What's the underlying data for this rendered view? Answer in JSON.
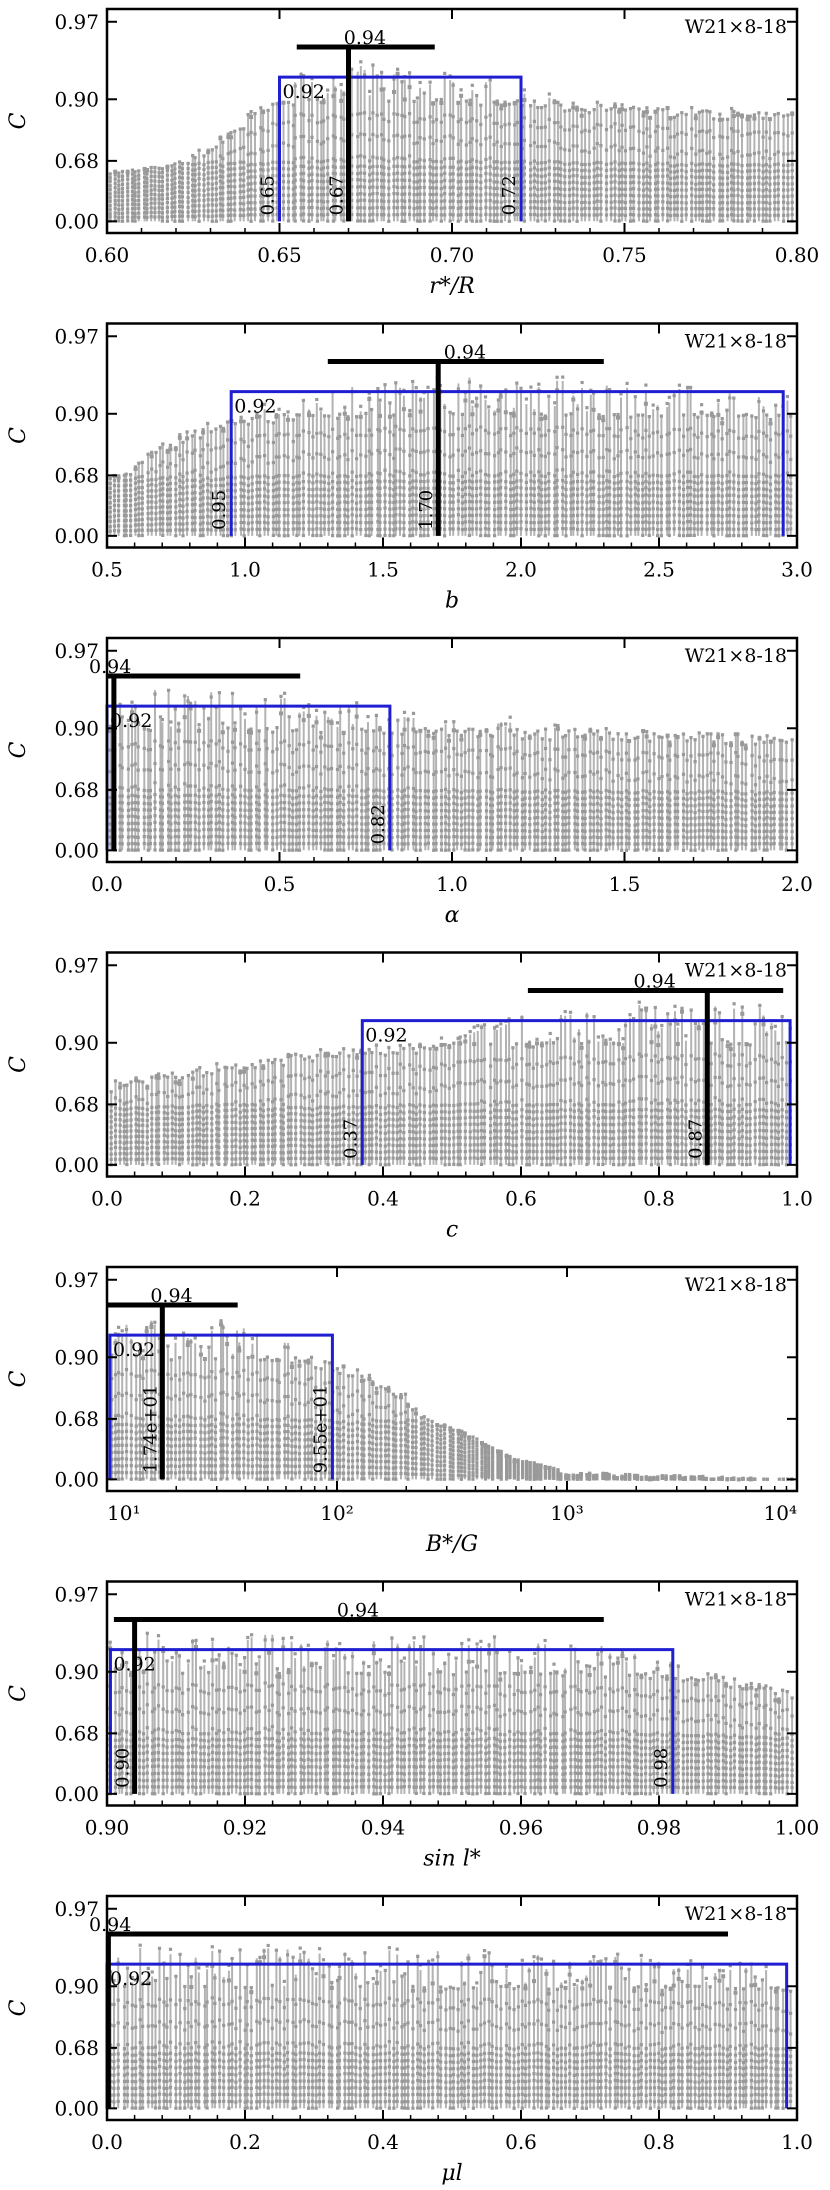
{
  "colors": {
    "points": "#999999",
    "box": "#1f1fd1",
    "marker": "#000000",
    "axis": "#000000"
  },
  "chart_data": [
    {
      "type": "scatter",
      "panel_label": "W21×8-18",
      "xlabel": "r*/R",
      "ylabel": "C",
      "xscale": "linear",
      "xlim": [
        0.6,
        0.8
      ],
      "xticks": [
        0.6,
        0.65,
        0.7,
        0.75,
        0.8
      ],
      "xtick_labels": [
        "0.60",
        "0.65",
        "0.70",
        "0.75",
        "0.80"
      ],
      "ytick_labels": [
        "0.00",
        "0.68",
        "0.90",
        "0.97"
      ],
      "best_x": 0.67,
      "best_x_label": "0.67",
      "best_c": 0.94,
      "best_c_label": "0.94",
      "best_bar_x": [
        0.655,
        0.695
      ],
      "box_c": 0.92,
      "box_c_label": "0.92",
      "box_x": [
        0.65,
        0.72
      ],
      "box_x_labels": [
        "0.65",
        "0.72"
      ],
      "envelope": [
        {
          "x": 0.6,
          "c": 0.56
        },
        {
          "x": 0.615,
          "c": 0.62
        },
        {
          "x": 0.625,
          "c": 0.7
        },
        {
          "x": 0.635,
          "c": 0.8
        },
        {
          "x": 0.645,
          "c": 0.88
        },
        {
          "x": 0.655,
          "c": 0.925
        },
        {
          "x": 0.67,
          "c": 0.935
        },
        {
          "x": 0.69,
          "c": 0.93
        },
        {
          "x": 0.71,
          "c": 0.92
        },
        {
          "x": 0.725,
          "c": 0.905
        },
        {
          "x": 0.74,
          "c": 0.89
        },
        {
          "x": 0.76,
          "c": 0.875
        },
        {
          "x": 0.78,
          "c": 0.865
        },
        {
          "x": 0.8,
          "c": 0.855
        }
      ]
    },
    {
      "type": "scatter",
      "panel_label": "W21×8-18",
      "xlabel": "b",
      "ylabel": "C",
      "xscale": "linear",
      "xlim": [
        0.5,
        3.0
      ],
      "xticks": [
        0.5,
        1.0,
        1.5,
        2.0,
        2.5,
        3.0
      ],
      "xtick_labels": [
        "0.5",
        "1.0",
        "1.5",
        "2.0",
        "2.5",
        "3.0"
      ],
      "ytick_labels": [
        "0.00",
        "0.68",
        "0.90",
        "0.97"
      ],
      "best_x": 1.7,
      "best_x_label": "1.70",
      "best_c": 0.94,
      "best_c_label": "0.94",
      "best_bar_x": [
        1.3,
        2.3
      ],
      "box_c": 0.92,
      "box_c_label": "0.92",
      "box_x": [
        0.95,
        2.95
      ],
      "box_x_labels": [
        "0.95",
        ""
      ],
      "envelope": [
        {
          "x": 0.5,
          "c": 0.66
        },
        {
          "x": 0.7,
          "c": 0.8
        },
        {
          "x": 0.9,
          "c": 0.88
        },
        {
          "x": 1.1,
          "c": 0.91
        },
        {
          "x": 1.4,
          "c": 0.925
        },
        {
          "x": 1.7,
          "c": 0.935
        },
        {
          "x": 2.0,
          "c": 0.935
        },
        {
          "x": 2.3,
          "c": 0.93
        },
        {
          "x": 2.6,
          "c": 0.925
        },
        {
          "x": 3.0,
          "c": 0.915
        }
      ]
    },
    {
      "type": "scatter",
      "panel_label": "W21×8-18",
      "xlabel": "α",
      "ylabel": "C",
      "xscale": "linear",
      "xlim": [
        0.0,
        2.0
      ],
      "xticks": [
        0.0,
        0.5,
        1.0,
        1.5,
        2.0
      ],
      "xtick_labels": [
        "0.0",
        "0.5",
        "1.0",
        "1.5",
        "2.0"
      ],
      "ytick_labels": [
        "0.00",
        "0.68",
        "0.90",
        "0.97"
      ],
      "best_x": 0.02,
      "best_x_label": "",
      "best_c": 0.94,
      "best_c_label": "0.94",
      "best_bar_x": [
        0.0,
        0.56
      ],
      "box_c": 0.92,
      "box_c_label": "0.92",
      "box_x": [
        0.0,
        0.82
      ],
      "box_x_labels": [
        "",
        "0.82"
      ],
      "envelope": [
        {
          "x": 0.0,
          "c": 0.935
        },
        {
          "x": 0.3,
          "c": 0.935
        },
        {
          "x": 0.6,
          "c": 0.925
        },
        {
          "x": 0.9,
          "c": 0.915
        },
        {
          "x": 1.2,
          "c": 0.905
        },
        {
          "x": 1.5,
          "c": 0.895
        },
        {
          "x": 1.8,
          "c": 0.885
        },
        {
          "x": 2.0,
          "c": 0.87
        }
      ]
    },
    {
      "type": "scatter",
      "panel_label": "W21×8-18",
      "xlabel": "c",
      "ylabel": "C",
      "xscale": "linear",
      "xlim": [
        0.0,
        1.0
      ],
      "xticks": [
        0.0,
        0.2,
        0.4,
        0.6,
        0.8,
        1.0
      ],
      "xtick_labels": [
        "0.0",
        "0.2",
        "0.4",
        "0.6",
        "0.8",
        "1.0"
      ],
      "ytick_labels": [
        "0.00",
        "0.68",
        "0.90",
        "0.97"
      ],
      "best_x": 0.87,
      "best_x_label": "0.87",
      "best_c": 0.94,
      "best_c_label": "0.94",
      "best_bar_x": [
        0.61,
        0.98
      ],
      "box_c": 0.92,
      "box_c_label": "0.92",
      "box_x": [
        0.37,
        0.99
      ],
      "box_x_labels": [
        "0.37",
        ""
      ],
      "envelope": [
        {
          "x": 0.0,
          "c": 0.76
        },
        {
          "x": 0.15,
          "c": 0.82
        },
        {
          "x": 0.3,
          "c": 0.87
        },
        {
          "x": 0.45,
          "c": 0.905
        },
        {
          "x": 0.6,
          "c": 0.925
        },
        {
          "x": 0.75,
          "c": 0.935
        },
        {
          "x": 0.9,
          "c": 0.935
        },
        {
          "x": 1.0,
          "c": 0.93
        }
      ]
    },
    {
      "type": "scatter",
      "panel_label": "W21×8-18",
      "xlabel": "B*/G",
      "ylabel": "C",
      "xscale": "log",
      "xlim": [
        10,
        10000
      ],
      "xticks": [
        10,
        100,
        1000,
        10000
      ],
      "xtick_labels": [
        "10¹",
        "10²",
        "10³",
        "10⁴"
      ],
      "ytick_labels": [
        "0.00",
        "0.68",
        "0.90",
        "0.97"
      ],
      "best_x": 17.4,
      "best_x_label": "1.74e+01",
      "best_c": 0.94,
      "best_c_label": "0.94",
      "best_bar_x": [
        10,
        37
      ],
      "box_c": 0.92,
      "box_c_label": "0.92",
      "box_x": [
        10.3,
        95.5
      ],
      "box_x_labels": [
        "",
        "9.55e+01"
      ],
      "envelope": [
        {
          "x": 10,
          "c": 0.935
        },
        {
          "x": 20,
          "c": 0.935
        },
        {
          "x": 40,
          "c": 0.93
        },
        {
          "x": 70,
          "c": 0.91
        },
        {
          "x": 120,
          "c": 0.86
        },
        {
          "x": 200,
          "c": 0.78
        },
        {
          "x": 350,
          "c": 0.55
        },
        {
          "x": 600,
          "c": 0.25
        },
        {
          "x": 1000,
          "c": 0.08
        },
        {
          "x": 10000,
          "c": 0.0
        }
      ]
    },
    {
      "type": "scatter",
      "panel_label": "W21×8-18",
      "xlabel": "sin l*",
      "ylabel": "C",
      "xscale": "linear",
      "xlim": [
        0.9,
        1.0
      ],
      "xticks": [
        0.9,
        0.92,
        0.94,
        0.96,
        0.98,
        1.0
      ],
      "xtick_labels": [
        "0.90",
        "0.92",
        "0.94",
        "0.96",
        "0.98",
        "1.00"
      ],
      "ytick_labels": [
        "0.00",
        "0.68",
        "0.90",
        "0.97"
      ],
      "best_x": 0.904,
      "best_x_label": "0.90",
      "best_c": 0.94,
      "best_c_label": "0.94",
      "best_bar_x": [
        0.901,
        0.972
      ],
      "box_c": 0.92,
      "box_c_label": "0.92",
      "box_x": [
        0.9005,
        0.982
      ],
      "box_x_labels": [
        "",
        "0.98"
      ],
      "envelope": [
        {
          "x": 0.9,
          "c": 0.935
        },
        {
          "x": 0.93,
          "c": 0.935
        },
        {
          "x": 0.96,
          "c": 0.93
        },
        {
          "x": 0.975,
          "c": 0.925
        },
        {
          "x": 0.985,
          "c": 0.905
        },
        {
          "x": 0.995,
          "c": 0.86
        },
        {
          "x": 1.0,
          "c": 0.83
        }
      ]
    },
    {
      "type": "scatter",
      "panel_label": "W21×8-18",
      "xlabel": "μl",
      "ylabel": "C",
      "xscale": "linear",
      "xlim": [
        0.0,
        1.0
      ],
      "xticks": [
        0.0,
        0.2,
        0.4,
        0.6,
        0.8,
        1.0
      ],
      "xtick_labels": [
        "0.0",
        "0.2",
        "0.4",
        "0.6",
        "0.8",
        "1.0"
      ],
      "ytick_labels": [
        "0.00",
        "0.68",
        "0.90",
        "0.97"
      ],
      "best_x": 0.002,
      "best_x_label": "",
      "best_c": 0.94,
      "best_c_label": "0.94",
      "best_bar_x": [
        0.0,
        0.9
      ],
      "box_c": 0.92,
      "box_c_label": "0.92",
      "box_x": [
        0.0,
        0.985
      ],
      "box_x_labels": [
        "",
        ""
      ],
      "envelope": [
        {
          "x": 0.0,
          "c": 0.935
        },
        {
          "x": 0.3,
          "c": 0.935
        },
        {
          "x": 0.6,
          "c": 0.93
        },
        {
          "x": 0.9,
          "c": 0.925
        },
        {
          "x": 1.0,
          "c": 0.92
        }
      ]
    }
  ]
}
